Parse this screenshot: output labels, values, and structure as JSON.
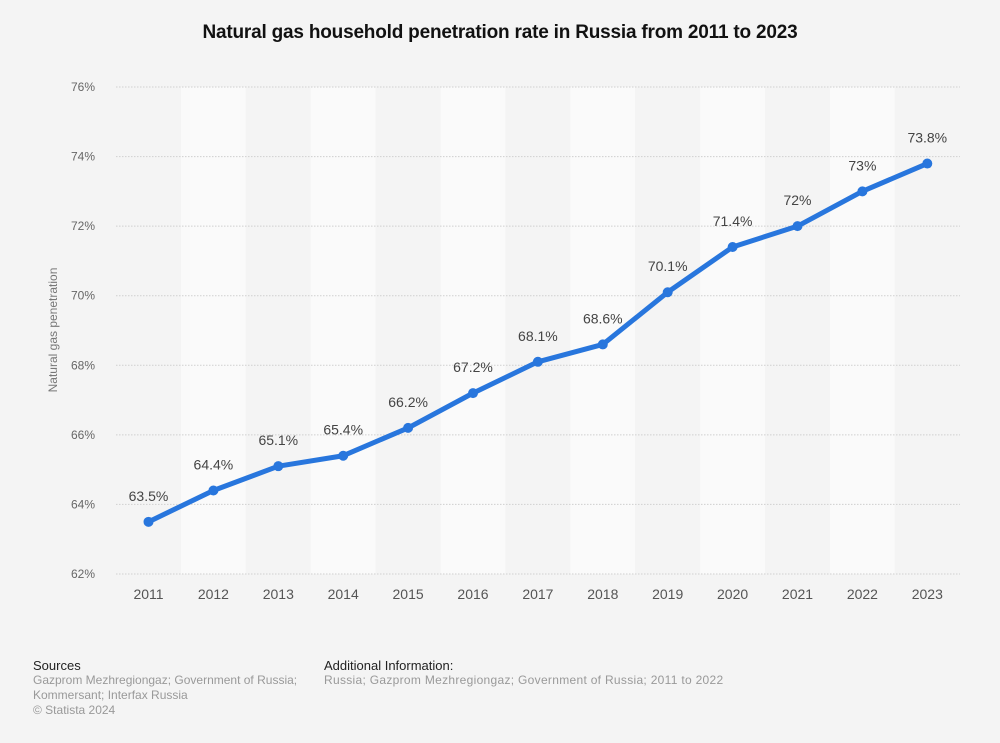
{
  "chart_data": {
    "type": "line",
    "title": "Natural gas household penetration rate in Russia from 2011 to 2023",
    "xlabel": "",
    "ylabel": "Natural gas penetration",
    "categories": [
      "2011",
      "2012",
      "2013",
      "2014",
      "2015",
      "2016",
      "2017",
      "2018",
      "2019",
      "2020",
      "2021",
      "2022",
      "2023"
    ],
    "series": [
      {
        "name": "Natural gas penetration",
        "values": [
          63.5,
          64.4,
          65.1,
          65.4,
          66.2,
          67.2,
          68.1,
          68.6,
          70.1,
          71.4,
          72,
          73,
          73.8
        ],
        "labels": [
          "63.5%",
          "64.4%",
          "65.1%",
          "65.4%",
          "66.2%",
          "67.2%",
          "68.1%",
          "68.6%",
          "70.1%",
          "71.4%",
          "72%",
          "73%",
          "73.8%"
        ],
        "color": "#2876dd"
      }
    ],
    "ylim": [
      62,
      76
    ],
    "yticks": [
      62,
      64,
      66,
      68,
      70,
      72,
      74,
      76
    ],
    "ytick_labels": [
      "62%",
      "64%",
      "66%",
      "68%",
      "70%",
      "72%",
      "74%",
      "76%"
    ],
    "grid": true,
    "legend": "none"
  },
  "footer": {
    "sources_heading": "Sources",
    "sources_line1": "Gazprom Mezhregiongaz; Government of Russia;",
    "sources_line2": "Kommersant; Interfax Russia",
    "copyright": "© Statista 2024",
    "additional_heading": "Additional Information:",
    "additional_text": "Russia; Gazprom Mezhregiongaz; Government of Russia; 2011 to 2022"
  }
}
